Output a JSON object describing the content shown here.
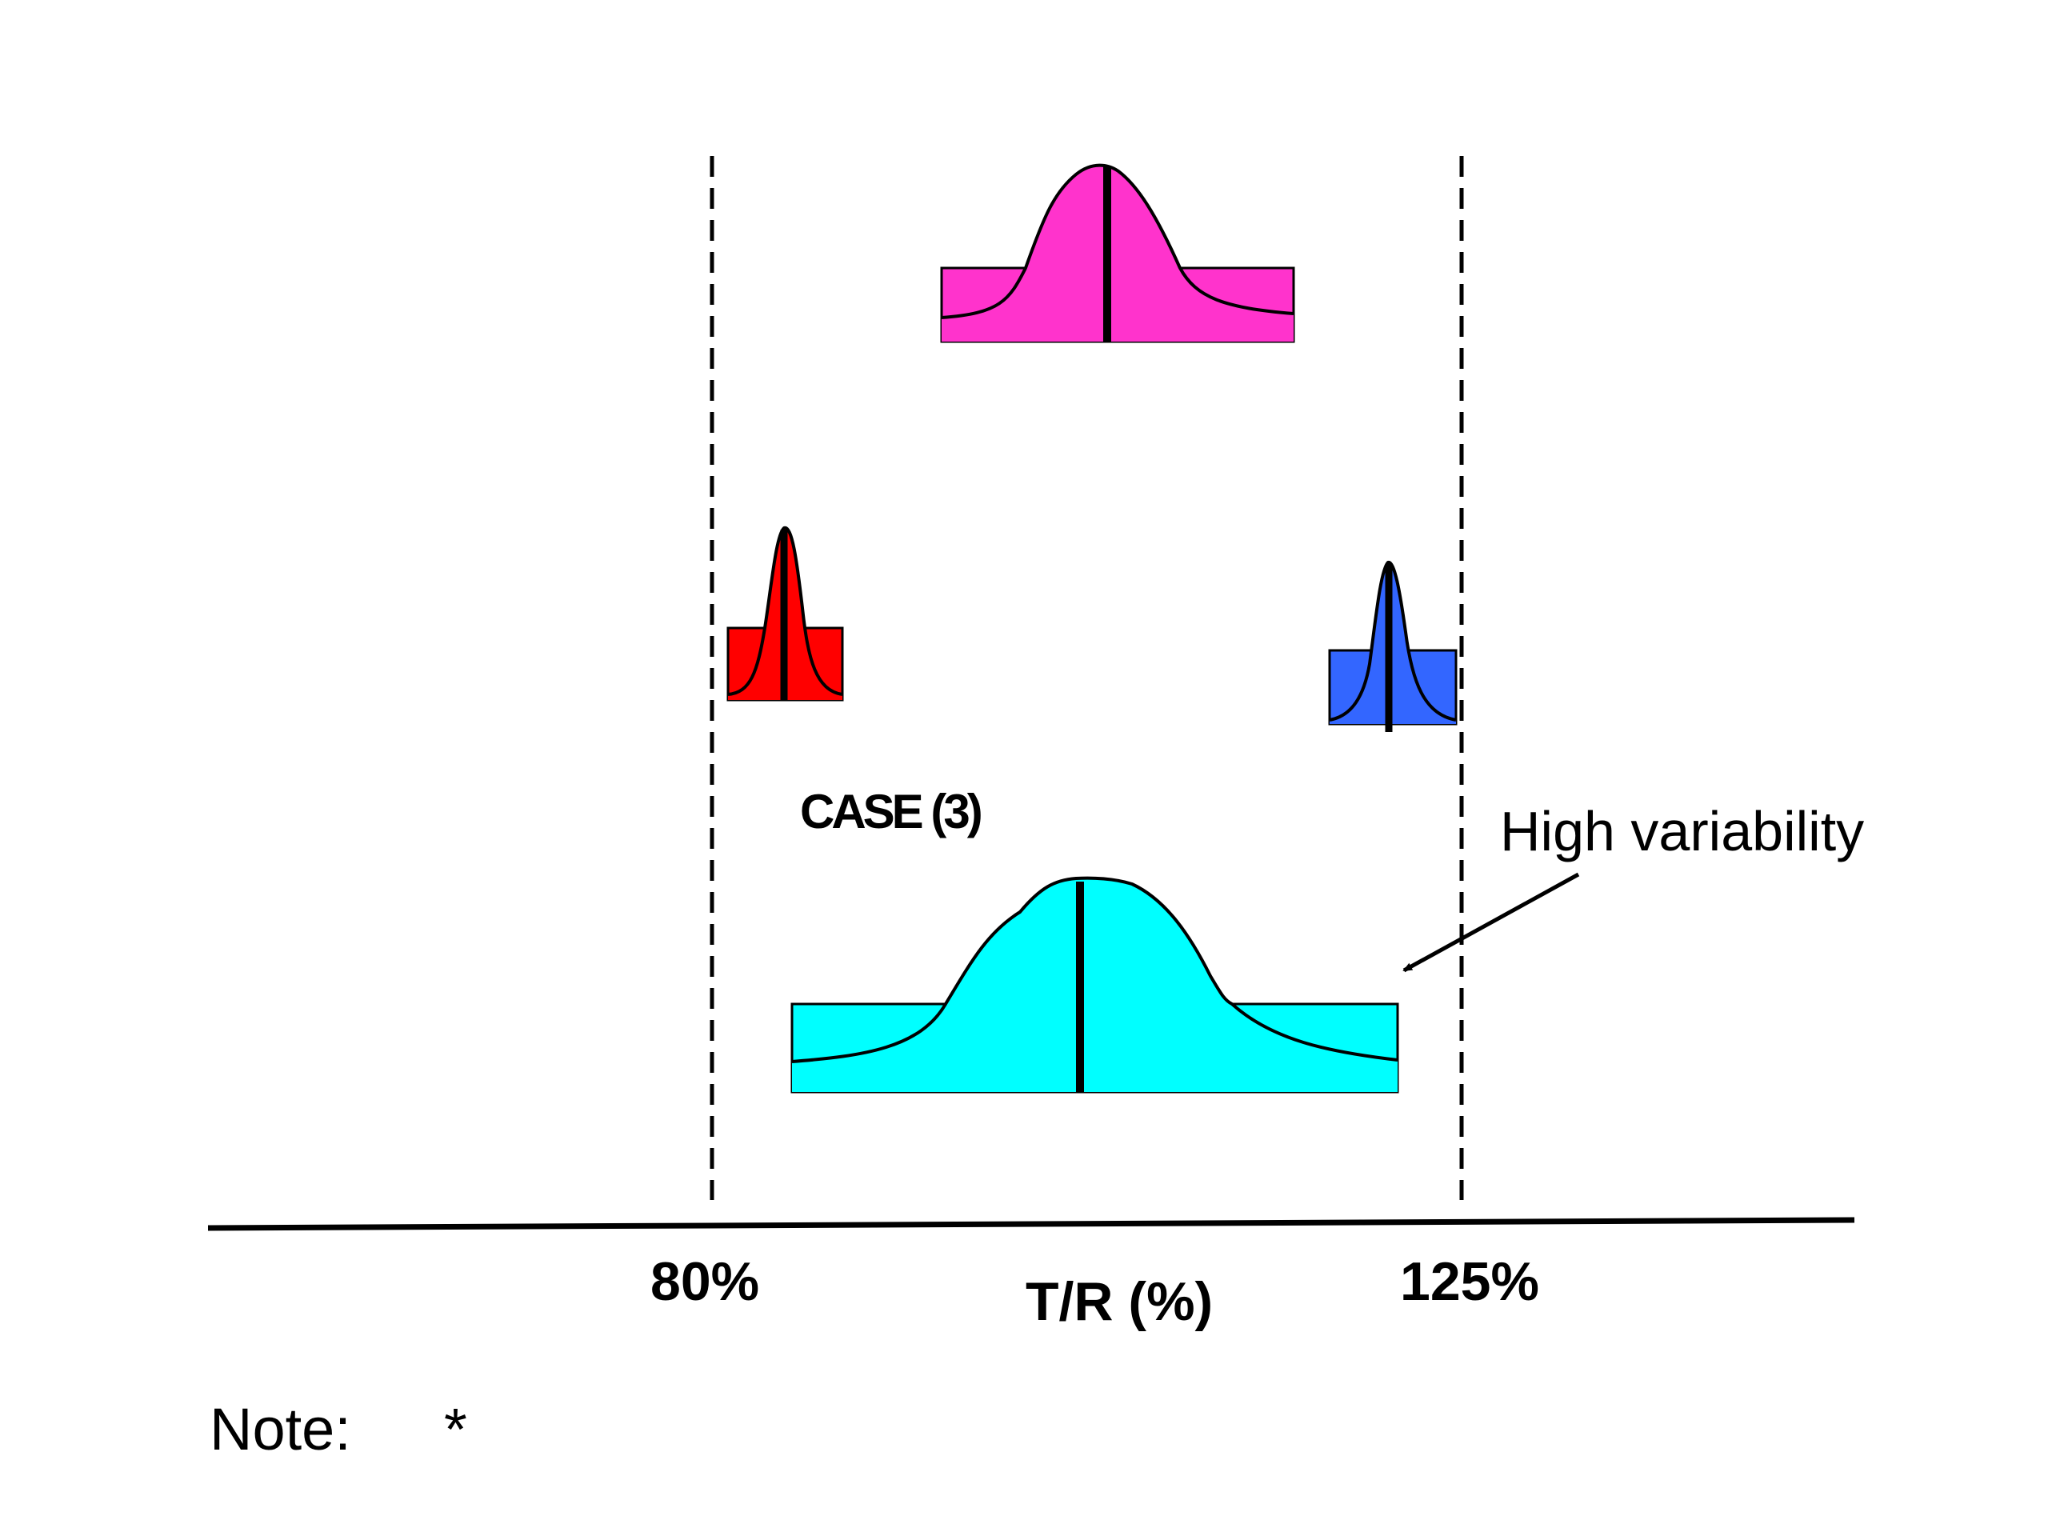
{
  "diagram": {
    "axis": {
      "left_limit_label": "80%",
      "right_limit_label": "125%",
      "axis_title": "T/R (%)"
    },
    "case_label": "CASE (3)",
    "annotation": "High variability",
    "note": {
      "label": "Note:",
      "marker": "*"
    },
    "distributions": [
      {
        "name": "magenta",
        "color": "#ff33cc"
      },
      {
        "name": "red",
        "color": "#ff0000"
      },
      {
        "name": "blue",
        "color": "#3366ff"
      },
      {
        "name": "cyan",
        "color": "#00ffff"
      }
    ]
  }
}
